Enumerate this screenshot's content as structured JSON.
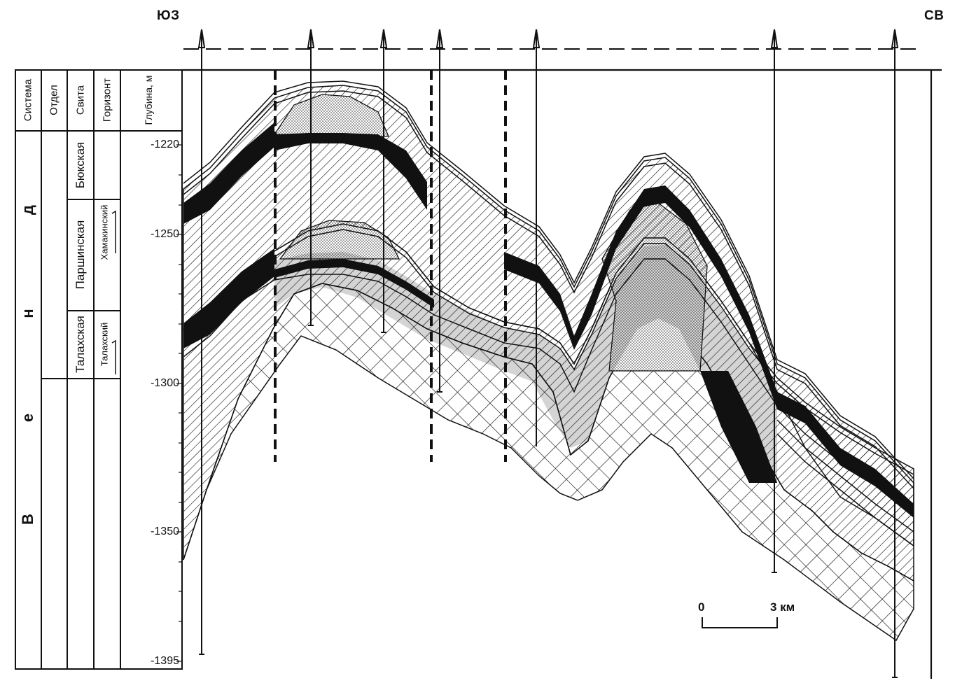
{
  "orientation": {
    "left": "ЮЗ",
    "right": "СВ"
  },
  "column_headers": [
    "Система",
    "Отдел",
    "Свита",
    "Горизонт",
    "Глубина, м"
  ],
  "system": {
    "letters": [
      "В",
      "е",
      "н",
      "д"
    ]
  },
  "formations": [
    "Бюкская",
    "Паршинская",
    "Талахская"
  ],
  "horizons": [
    "Хамакинский",
    "Талахский"
  ],
  "depth_ticks": [
    "-1220",
    "-1250",
    "-1300",
    "-1350",
    "-1395"
  ],
  "scale": {
    "start": "0",
    "end": "3 км"
  },
  "colors": {
    "ink": "#111111",
    "paper": "#ffffff"
  }
}
